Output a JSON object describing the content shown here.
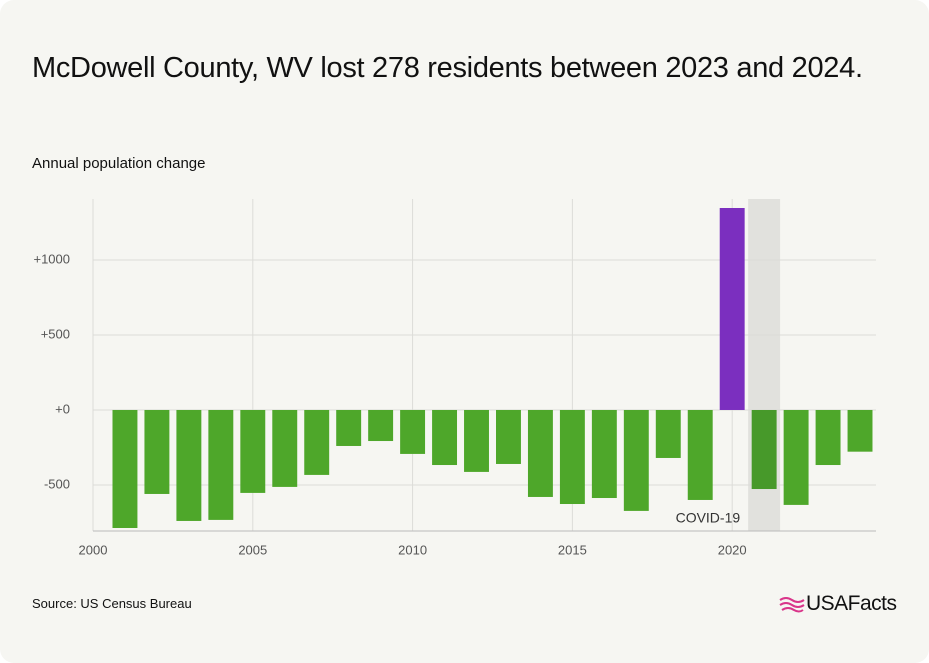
{
  "chart_data": {
    "type": "bar",
    "title": "McDowell County, WV lost 278 residents between 2023 and 2024.",
    "subtitle": "Annual population change",
    "source": "Source: US Census Bureau",
    "brand": "USAFacts",
    "x": [
      2001,
      2002,
      2003,
      2004,
      2005,
      2006,
      2007,
      2008,
      2009,
      2010,
      2011,
      2012,
      2013,
      2014,
      2015,
      2016,
      2017,
      2018,
      2019,
      2020,
      2021,
      2022,
      2023,
      2024
    ],
    "values": [
      -787,
      -560,
      -740,
      -733,
      -553,
      -513,
      -433,
      -240,
      -207,
      -293,
      -367,
      -413,
      -360,
      -580,
      -627,
      -587,
      -673,
      -320,
      -600,
      1347,
      -527,
      -633,
      -367,
      -278
    ],
    "colors": [
      "#4ea72a",
      "#4ea72a",
      "#4ea72a",
      "#4ea72a",
      "#4ea72a",
      "#4ea72a",
      "#4ea72a",
      "#4ea72a",
      "#4ea72a",
      "#4ea72a",
      "#4ea72a",
      "#4ea72a",
      "#4ea72a",
      "#4ea72a",
      "#4ea72a",
      "#4ea72a",
      "#4ea72a",
      "#4ea72a",
      "#4ea72a",
      "#7b2fbf",
      "#47992a",
      "#4ea72a",
      "#4ea72a",
      "#4ea72a"
    ],
    "xlim": [
      2000,
      2024.5
    ],
    "xticks": [
      2000,
      2005,
      2010,
      2015,
      2020
    ],
    "ylim": [
      -807,
      1407
    ],
    "yticks": [
      {
        "value": -500,
        "label": "-500"
      },
      {
        "value": 0,
        "label": "+0"
      },
      {
        "value": 500,
        "label": "+500"
      },
      {
        "value": 1000,
        "label": "+1000"
      }
    ],
    "grid": true,
    "shade": {
      "x": [
        2020.5,
        2021.5
      ],
      "color": "#e1e1dd",
      "label": "COVID-19"
    }
  }
}
